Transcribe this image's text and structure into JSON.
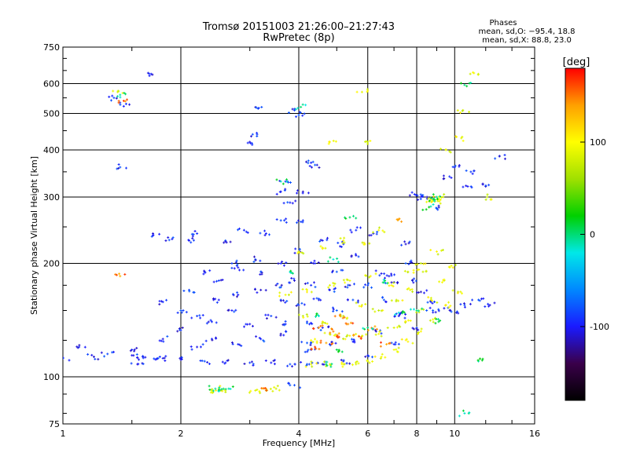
{
  "chart_data": {
    "type": "scatter",
    "title": "Tromsø 20151003 21:26:00–21:27:43",
    "subtitle": "RwPretec (8p)",
    "xlabel": "Frequency [MHz]",
    "ylabel": "Stationary phase Virtual Height [km]",
    "x_scale": "log",
    "y_scale": "log",
    "xlim": [
      1,
      16
    ],
    "ylim": [
      75,
      750
    ],
    "x_ticks": [
      1,
      2,
      4,
      6,
      8,
      10,
      16
    ],
    "x_tick_labels": [
      "1",
      "2",
      "4",
      "6",
      "8",
      "10",
      "16"
    ],
    "y_ticks": [
      75,
      100,
      200,
      300,
      400,
      500,
      600,
      750
    ],
    "y_tick_labels": [
      "75",
      "100",
      "200",
      "300",
      "400",
      "500",
      "600",
      "750"
    ],
    "grid": true,
    "info_box": {
      "title": "Phases",
      "line1": "mean, sd,O: −95.4, 18.8",
      "line2": "mean, sd,X:  88.8, 23.0"
    },
    "colorbar": {
      "label": "[deg]",
      "range": [
        -180,
        180
      ],
      "ticks": [
        100,
        0,
        -100
      ],
      "tick_labels": [
        "100",
        "0",
        "-100"
      ],
      "colors": [
        "#000000",
        "#3a004a",
        "#1a1aff",
        "#0088ff",
        "#00e8e8",
        "#00d000",
        "#a0e000",
        "#ffff00",
        "#ffa000",
        "#ff0000"
      ]
    },
    "series": [
      {
        "phase": -95,
        "trace_type": "ordinary",
        "points": [
          [
            1.2,
            113
          ],
          [
            1.3,
            115
          ],
          [
            1.5,
            114
          ],
          [
            1.6,
            113
          ],
          [
            1.8,
            112
          ],
          [
            2.0,
            111
          ],
          [
            2.3,
            110
          ],
          [
            2.6,
            109
          ],
          [
            3.0,
            109
          ],
          [
            3.4,
            109
          ],
          [
            3.8,
            108
          ],
          [
            4.2,
            108
          ],
          [
            4.6,
            108
          ],
          [
            5.2,
            110
          ],
          [
            6.0,
            114
          ],
          [
            7.0,
            122
          ],
          [
            8.0,
            135
          ],
          [
            8.8,
            150
          ],
          [
            1.5,
            118
          ],
          [
            1.8,
            126
          ],
          [
            2.0,
            133
          ],
          [
            2.4,
            126
          ],
          [
            2.8,
            122
          ],
          [
            3.2,
            126
          ],
          [
            3.6,
            130
          ],
          [
            4.2,
            123
          ],
          [
            4.8,
            122
          ],
          [
            5.5,
            124
          ],
          [
            6.3,
            132
          ],
          [
            7.2,
            145
          ],
          [
            8.2,
            168
          ],
          [
            1.8,
            158
          ],
          [
            2.0,
            150
          ],
          [
            2.2,
            145
          ],
          [
            2.5,
            160
          ],
          [
            2.8,
            165
          ],
          [
            3.2,
            170
          ],
          [
            3.6,
            160
          ],
          [
            4.0,
            155
          ],
          [
            4.5,
            160
          ],
          [
            5.0,
            150
          ],
          [
            5.5,
            160
          ],
          [
            6.0,
            175
          ],
          [
            6.8,
            185
          ],
          [
            7.5,
            200
          ],
          [
            2.1,
            170
          ],
          [
            2.5,
            180
          ],
          [
            2.8,
            195
          ],
          [
            3.2,
            190
          ],
          [
            3.6,
            200
          ],
          [
            4.0,
            215
          ],
          [
            4.4,
            200
          ],
          [
            5.0,
            190
          ],
          [
            5.6,
            210
          ],
          [
            6.2,
            240
          ],
          [
            7.5,
            225
          ],
          [
            2.6,
            230
          ],
          [
            2.9,
            245
          ],
          [
            3.3,
            240
          ],
          [
            3.6,
            260
          ],
          [
            3.8,
            290
          ],
          [
            4.1,
            260
          ],
          [
            4.6,
            230
          ],
          [
            5.2,
            225
          ],
          [
            5.6,
            245
          ],
          [
            1.7,
            238
          ],
          [
            1.9,
            232
          ],
          [
            2.1,
            230
          ],
          [
            2.2,
            240
          ],
          [
            1.55,
            108
          ],
          [
            1.75,
            112
          ],
          [
            2.2,
            120
          ],
          [
            2.4,
            140
          ],
          [
            2.7,
            150
          ],
          [
            3.0,
            138
          ],
          [
            3.4,
            145
          ],
          [
            3.7,
            138
          ],
          [
            4.2,
            140
          ],
          [
            4.6,
            135
          ],
          [
            2.3,
            190
          ],
          [
            2.7,
            200
          ],
          [
            3.1,
            205
          ],
          [
            3.5,
            175
          ],
          [
            3.9,
            180
          ],
          [
            4.3,
            175
          ],
          [
            4.8,
            170
          ],
          [
            5.4,
            175
          ],
          [
            6.6,
            160
          ],
          [
            7.8,
            180
          ],
          [
            3.0,
            420
          ],
          [
            3.05,
            440
          ],
          [
            3.15,
            515
          ],
          [
            3.9,
            510
          ],
          [
            4.0,
            495
          ],
          [
            4.3,
            370
          ],
          [
            4.4,
            365
          ],
          [
            4.1,
            310
          ],
          [
            3.7,
            330
          ],
          [
            3.6,
            310
          ],
          [
            7.9,
            305
          ],
          [
            8.2,
            300
          ],
          [
            8.5,
            300
          ],
          [
            9.0,
            280
          ],
          [
            9.7,
            340
          ],
          [
            10.0,
            360
          ],
          [
            10.8,
            320
          ],
          [
            11.0,
            350
          ],
          [
            12.0,
            320
          ],
          [
            13.0,
            385
          ],
          [
            1.35,
            550
          ],
          [
            1.45,
            530
          ],
          [
            1.65,
            640
          ],
          [
            1.4,
            360
          ],
          [
            1.1,
            120
          ],
          [
            1.0,
            112
          ],
          [
            3.9,
            95
          ],
          [
            4.3,
            118
          ],
          [
            6.5,
            188
          ],
          [
            6.9,
            178
          ],
          [
            10.6,
            155
          ],
          [
            11.5,
            160
          ],
          [
            12.3,
            155
          ],
          [
            7.3,
            148
          ],
          [
            8.7,
            158
          ],
          [
            9.4,
            152
          ],
          [
            10.1,
            148
          ]
        ]
      },
      {
        "phase": 90,
        "trace_type": "extraordinary",
        "points": [
          [
            4.3,
            108
          ],
          [
            4.8,
            108
          ],
          [
            5.2,
            108
          ],
          [
            5.6,
            108
          ],
          [
            6.0,
            110
          ],
          [
            6.5,
            113
          ],
          [
            7.0,
            118
          ],
          [
            7.6,
            124
          ],
          [
            8.2,
            132
          ],
          [
            8.8,
            142
          ],
          [
            9.5,
            155
          ],
          [
            10.2,
            168
          ],
          [
            4.3,
            125
          ],
          [
            4.8,
            130
          ],
          [
            5.3,
            128
          ],
          [
            5.8,
            128
          ],
          [
            6.4,
            130
          ],
          [
            7.0,
            135
          ],
          [
            7.5,
            140
          ],
          [
            8.1,
            150
          ],
          [
            8.7,
            160
          ],
          [
            9.4,
            180
          ],
          [
            9.9,
            195
          ],
          [
            4.1,
            145
          ],
          [
            4.6,
            140
          ],
          [
            5.2,
            145
          ],
          [
            5.8,
            155
          ],
          [
            6.4,
            150
          ],
          [
            7.1,
            160
          ],
          [
            7.7,
            170
          ],
          [
            8.3,
            190
          ],
          [
            9.0,
            215
          ],
          [
            3.7,
            165
          ],
          [
            4.2,
            170
          ],
          [
            4.8,
            175
          ],
          [
            5.4,
            180
          ],
          [
            6.1,
            185
          ],
          [
            6.9,
            175
          ],
          [
            7.6,
            190
          ],
          [
            8.2,
            200
          ],
          [
            4.0,
            215
          ],
          [
            4.6,
            220
          ],
          [
            5.2,
            230
          ],
          [
            5.9,
            225
          ],
          [
            6.4,
            245
          ],
          [
            8.7,
            295
          ],
          [
            8.9,
            292
          ],
          [
            9.1,
            300
          ],
          [
            9.2,
            295
          ],
          [
            12.1,
            300
          ],
          [
            2.4,
            92
          ],
          [
            2.5,
            93
          ],
          [
            2.6,
            92
          ],
          [
            3.1,
            92
          ],
          [
            3.3,
            92
          ],
          [
            3.5,
            93
          ],
          [
            4.8,
            420
          ],
          [
            6.0,
            420
          ],
          [
            9.5,
            400
          ],
          [
            10.5,
            510
          ],
          [
            10.4,
            430
          ],
          [
            11.2,
            640
          ],
          [
            5.8,
            570
          ],
          [
            1.38,
            570
          ]
        ]
      },
      {
        "phase": 150,
        "trace_type": "extraordinary",
        "points": [
          [
            4.5,
            135
          ],
          [
            4.9,
            132
          ],
          [
            5.3,
            138
          ],
          [
            5.7,
            128
          ],
          [
            6.2,
            134
          ],
          [
            7.2,
            262
          ],
          [
            5.1,
            145
          ],
          [
            5.0,
            128
          ],
          [
            4.4,
            120
          ],
          [
            4.7,
            123
          ],
          [
            6.7,
            122
          ],
          [
            1.4,
            185
          ],
          [
            3.3,
            93
          ],
          [
            1.43,
            540
          ]
        ]
      },
      {
        "phase": 0,
        "trace_type": "mixed",
        "points": [
          [
            2.5,
            92
          ],
          [
            2.45,
            93
          ],
          [
            2.65,
            93
          ],
          [
            8.85,
            297
          ],
          [
            9.0,
            300
          ],
          [
            5.4,
            265
          ],
          [
            8.6,
            282
          ],
          [
            10.6,
            595
          ],
          [
            3.8,
            190
          ],
          [
            6.6,
            178
          ],
          [
            3.6,
            330
          ],
          [
            11.5,
            110
          ],
          [
            4.9,
            205
          ],
          [
            4.7,
            108
          ],
          [
            5.0,
            118
          ],
          [
            6.0,
            135
          ],
          [
            7.2,
            148
          ],
          [
            8.0,
            150
          ],
          [
            9.1,
            140
          ],
          [
            4.5,
            145
          ],
          [
            4.05,
            520
          ],
          [
            1.4,
            560
          ],
          [
            10.6,
            80
          ]
        ]
      }
    ]
  }
}
